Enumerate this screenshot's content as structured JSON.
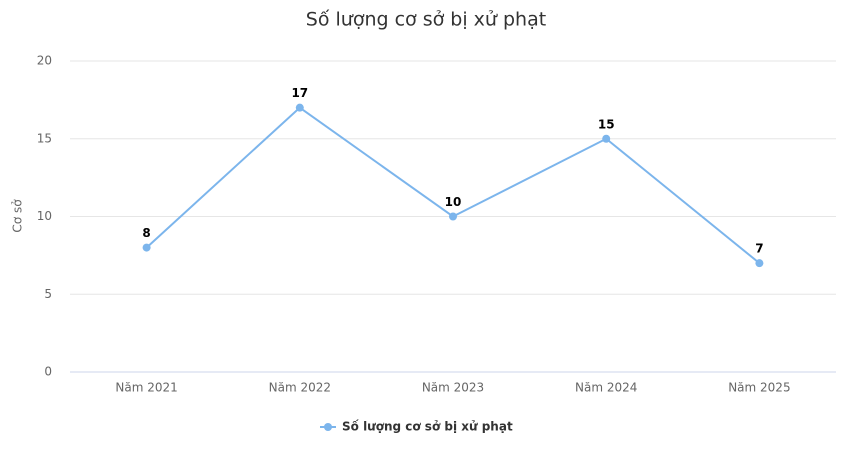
{
  "chart_data": {
    "type": "line",
    "title": "Số lượng cơ sở bị xử phạt",
    "y_label": "Cơ sở",
    "categories": [
      "Năm 2021",
      "Năm 2022",
      "Năm 2023",
      "Năm 2024",
      "Năm 2025"
    ],
    "series": [
      {
        "name": "Số lượng cơ sở bị xử phạt",
        "color": "#7cb5ec",
        "values": [
          8,
          17,
          10,
          15,
          7
        ]
      }
    ],
    "ylim": [
      0,
      20
    ],
    "yticks": [
      0,
      5,
      10,
      15,
      20
    ],
    "grid": true,
    "legend": "bottom"
  }
}
